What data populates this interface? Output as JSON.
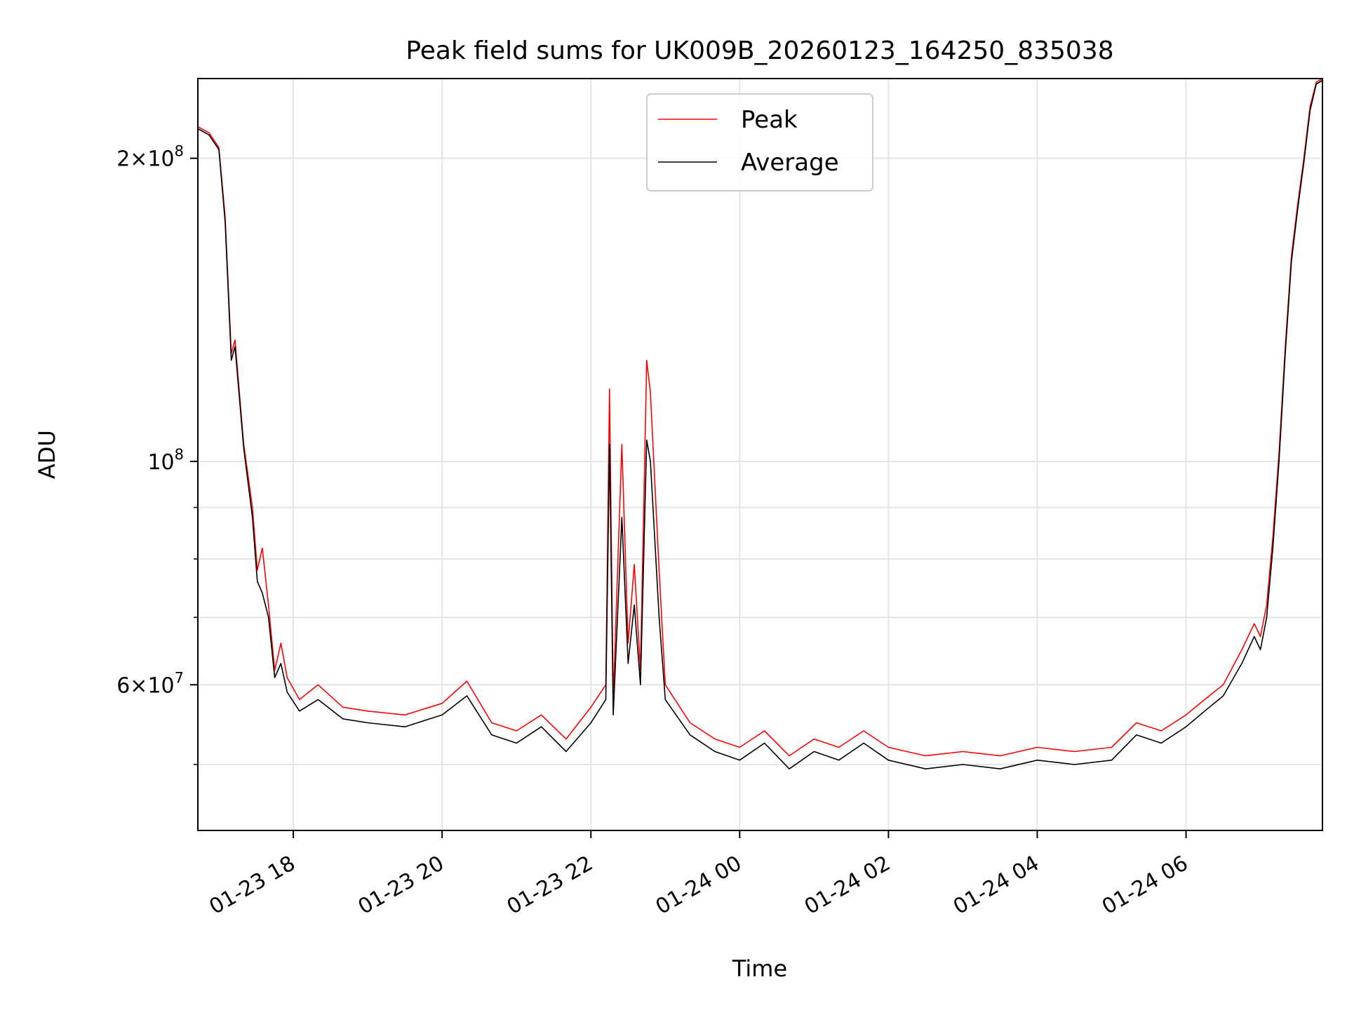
{
  "chart_data": {
    "type": "line",
    "title": "Peak field sums for UK009B_20260123_164250_835038",
    "xlabel": "Time",
    "ylabel": "ADU",
    "yscale": "log",
    "grid": true,
    "legend_position": "top-center",
    "x_range": [
      "2026-01-23 16:43",
      "2026-01-24 07:50"
    ],
    "ylim": [
      43000000,
      240000000
    ],
    "x_ticks": [
      {
        "t": "2026-01-23 18:00",
        "label": "01-23 18"
      },
      {
        "t": "2026-01-23 20:00",
        "label": "01-23 20"
      },
      {
        "t": "2026-01-23 22:00",
        "label": "01-23 22"
      },
      {
        "t": "2026-01-24 00:00",
        "label": "01-24 00"
      },
      {
        "t": "2026-01-24 02:00",
        "label": "01-24 02"
      },
      {
        "t": "2026-01-24 04:00",
        "label": "01-24 04"
      },
      {
        "t": "2026-01-24 06:00",
        "label": "01-24 06"
      }
    ],
    "y_ticks_major": [
      {
        "v": 60000000,
        "base": "6",
        "exp": "7"
      },
      {
        "v": 100000000,
        "base": "",
        "exp": "8"
      },
      {
        "v": 200000000,
        "base": "2",
        "exp": "8"
      }
    ],
    "y_ticks_minor": [
      50000000,
      70000000,
      80000000,
      90000000
    ],
    "series": [
      {
        "name": "Peak",
        "color": "#ff0000",
        "points": [
          [
            "2026-01-23 16:43",
            215000000
          ],
          [
            "2026-01-23 16:52",
            212000000
          ],
          [
            "2026-01-23 17:00",
            205000000
          ],
          [
            "2026-01-23 17:05",
            175000000
          ],
          [
            "2026-01-23 17:10",
            128000000
          ],
          [
            "2026-01-23 17:13",
            132000000
          ],
          [
            "2026-01-23 17:20",
            104000000
          ],
          [
            "2026-01-23 17:27",
            90000000
          ],
          [
            "2026-01-23 17:31",
            78000000
          ],
          [
            "2026-01-23 17:35",
            82000000
          ],
          [
            "2026-01-23 17:40",
            72000000
          ],
          [
            "2026-01-23 17:45",
            62000000
          ],
          [
            "2026-01-23 17:50",
            66000000
          ],
          [
            "2026-01-23 17:55",
            61000000
          ],
          [
            "2026-01-23 18:05",
            58000000
          ],
          [
            "2026-01-23 18:20",
            60000000
          ],
          [
            "2026-01-23 18:40",
            57000000
          ],
          [
            "2026-01-23 19:00",
            56500000
          ],
          [
            "2026-01-23 19:30",
            56000000
          ],
          [
            "2026-01-23 20:00",
            57500000
          ],
          [
            "2026-01-23 20:20",
            60500000
          ],
          [
            "2026-01-23 20:40",
            55000000
          ],
          [
            "2026-01-23 21:00",
            54000000
          ],
          [
            "2026-01-23 21:20",
            56000000
          ],
          [
            "2026-01-23 21:40",
            53000000
          ],
          [
            "2026-01-23 22:00",
            57000000
          ],
          [
            "2026-01-23 22:12",
            60000000
          ],
          [
            "2026-01-23 22:15",
            118000000
          ],
          [
            "2026-01-23 22:18",
            58000000
          ],
          [
            "2026-01-23 22:25",
            104000000
          ],
          [
            "2026-01-23 22:30",
            66000000
          ],
          [
            "2026-01-23 22:35",
            79000000
          ],
          [
            "2026-01-23 22:40",
            62000000
          ],
          [
            "2026-01-23 22:45",
            126000000
          ],
          [
            "2026-01-23 22:48",
            117000000
          ],
          [
            "2026-01-23 22:55",
            78000000
          ],
          [
            "2026-01-23 23:00",
            60000000
          ],
          [
            "2026-01-23 23:20",
            55000000
          ],
          [
            "2026-01-23 23:40",
            53000000
          ],
          [
            "2026-01-24 00:00",
            52000000
          ],
          [
            "2026-01-24 00:20",
            54000000
          ],
          [
            "2026-01-24 00:40",
            51000000
          ],
          [
            "2026-01-24 01:00",
            53000000
          ],
          [
            "2026-01-24 01:20",
            52000000
          ],
          [
            "2026-01-24 01:40",
            54000000
          ],
          [
            "2026-01-24 02:00",
            52000000
          ],
          [
            "2026-01-24 02:30",
            51000000
          ],
          [
            "2026-01-24 03:00",
            51500000
          ],
          [
            "2026-01-24 03:30",
            51000000
          ],
          [
            "2026-01-24 04:00",
            52000000
          ],
          [
            "2026-01-24 04:30",
            51500000
          ],
          [
            "2026-01-24 05:00",
            52000000
          ],
          [
            "2026-01-24 05:20",
            55000000
          ],
          [
            "2026-01-24 05:40",
            54000000
          ],
          [
            "2026-01-24 06:00",
            56000000
          ],
          [
            "2026-01-24 06:15",
            58000000
          ],
          [
            "2026-01-24 06:30",
            60000000
          ],
          [
            "2026-01-24 06:45",
            65000000
          ],
          [
            "2026-01-24 06:55",
            69000000
          ],
          [
            "2026-01-24 07:00",
            67000000
          ],
          [
            "2026-01-24 07:05",
            72000000
          ],
          [
            "2026-01-24 07:10",
            84000000
          ],
          [
            "2026-01-24 07:15",
            102000000
          ],
          [
            "2026-01-24 07:20",
            130000000
          ],
          [
            "2026-01-24 07:25",
            160000000
          ],
          [
            "2026-01-24 07:30",
            180000000
          ],
          [
            "2026-01-24 07:35",
            200000000
          ],
          [
            "2026-01-24 07:40",
            225000000
          ],
          [
            "2026-01-24 07:45",
            238000000
          ],
          [
            "2026-01-24 07:50",
            240000000
          ]
        ]
      },
      {
        "name": "Average",
        "color": "#000000",
        "points": [
          [
            "2026-01-23 16:43",
            214000000
          ],
          [
            "2026-01-23 16:52",
            211000000
          ],
          [
            "2026-01-23 17:00",
            204000000
          ],
          [
            "2026-01-23 17:05",
            173000000
          ],
          [
            "2026-01-23 17:10",
            126000000
          ],
          [
            "2026-01-23 17:13",
            130000000
          ],
          [
            "2026-01-23 17:20",
            103000000
          ],
          [
            "2026-01-23 17:27",
            88000000
          ],
          [
            "2026-01-23 17:31",
            76000000
          ],
          [
            "2026-01-23 17:35",
            74000000
          ],
          [
            "2026-01-23 17:40",
            70000000
          ],
          [
            "2026-01-23 17:45",
            61000000
          ],
          [
            "2026-01-23 17:50",
            63000000
          ],
          [
            "2026-01-23 17:55",
            59000000
          ],
          [
            "2026-01-23 18:05",
            56500000
          ],
          [
            "2026-01-23 18:20",
            58000000
          ],
          [
            "2026-01-23 18:40",
            55500000
          ],
          [
            "2026-01-23 19:00",
            55000000
          ],
          [
            "2026-01-23 19:30",
            54500000
          ],
          [
            "2026-01-23 20:00",
            56000000
          ],
          [
            "2026-01-23 20:20",
            58500000
          ],
          [
            "2026-01-23 20:40",
            53500000
          ],
          [
            "2026-01-23 21:00",
            52500000
          ],
          [
            "2026-01-23 21:20",
            54500000
          ],
          [
            "2026-01-23 21:40",
            51500000
          ],
          [
            "2026-01-23 22:00",
            55000000
          ],
          [
            "2026-01-23 22:12",
            58000000
          ],
          [
            "2026-01-23 22:15",
            104000000
          ],
          [
            "2026-01-23 22:18",
            56000000
          ],
          [
            "2026-01-23 22:25",
            88000000
          ],
          [
            "2026-01-23 22:30",
            63000000
          ],
          [
            "2026-01-23 22:35",
            72000000
          ],
          [
            "2026-01-23 22:40",
            60000000
          ],
          [
            "2026-01-23 22:45",
            105000000
          ],
          [
            "2026-01-23 22:48",
            100000000
          ],
          [
            "2026-01-23 22:55",
            70000000
          ],
          [
            "2026-01-23 23:00",
            58000000
          ],
          [
            "2026-01-23 23:20",
            53500000
          ],
          [
            "2026-01-23 23:40",
            51500000
          ],
          [
            "2026-01-24 00:00",
            50500000
          ],
          [
            "2026-01-24 00:20",
            52500000
          ],
          [
            "2026-01-24 00:40",
            49500000
          ],
          [
            "2026-01-24 01:00",
            51500000
          ],
          [
            "2026-01-24 01:20",
            50500000
          ],
          [
            "2026-01-24 01:40",
            52500000
          ],
          [
            "2026-01-24 02:00",
            50500000
          ],
          [
            "2026-01-24 02:30",
            49500000
          ],
          [
            "2026-01-24 03:00",
            50000000
          ],
          [
            "2026-01-24 03:30",
            49500000
          ],
          [
            "2026-01-24 04:00",
            50500000
          ],
          [
            "2026-01-24 04:30",
            50000000
          ],
          [
            "2026-01-24 05:00",
            50500000
          ],
          [
            "2026-01-24 05:20",
            53500000
          ],
          [
            "2026-01-24 05:40",
            52500000
          ],
          [
            "2026-01-24 06:00",
            54500000
          ],
          [
            "2026-01-24 06:15",
            56500000
          ],
          [
            "2026-01-24 06:30",
            58500000
          ],
          [
            "2026-01-24 06:45",
            63000000
          ],
          [
            "2026-01-24 06:55",
            67000000
          ],
          [
            "2026-01-24 07:00",
            65000000
          ],
          [
            "2026-01-24 07:05",
            70000000
          ],
          [
            "2026-01-24 07:10",
            82000000
          ],
          [
            "2026-01-24 07:15",
            100000000
          ],
          [
            "2026-01-24 07:20",
            128000000
          ],
          [
            "2026-01-24 07:25",
            158000000
          ],
          [
            "2026-01-24 07:30",
            178000000
          ],
          [
            "2026-01-24 07:35",
            198000000
          ],
          [
            "2026-01-24 07:40",
            223000000
          ],
          [
            "2026-01-24 07:45",
            237000000
          ],
          [
            "2026-01-24 07:50",
            239000000
          ]
        ]
      }
    ]
  }
}
